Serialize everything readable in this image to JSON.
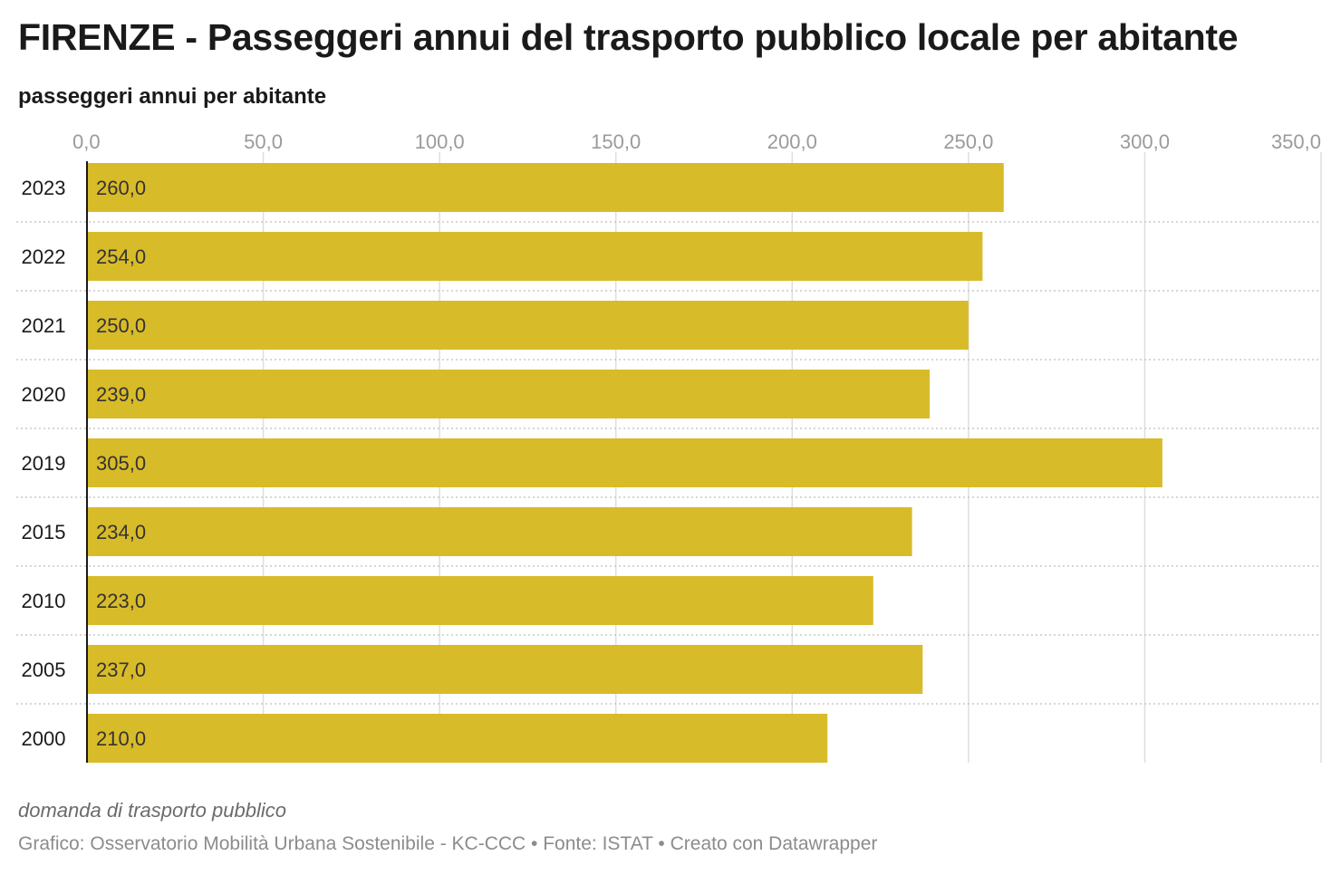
{
  "header": {
    "title": "FIRENZE - Passeggeri annui del trasporto pubblico locale per abitante",
    "subtitle": "passeggeri annui per abitante"
  },
  "footer": {
    "note": "domanda di trasporto pubblico",
    "credits": "Grafico: Osservatorio Mobilità Urbana Sostenibile - KC-CCC • Fonte: ISTAT • Creato con Datawrapper"
  },
  "chart_data": {
    "type": "bar",
    "orientation": "horizontal",
    "title": "FIRENZE - Passeggeri annui del trasporto pubblico locale per abitante",
    "subtitle": "passeggeri annui per abitante",
    "categories": [
      "2023",
      "2022",
      "2021",
      "2020",
      "2019",
      "2015",
      "2010",
      "2005",
      "2000"
    ],
    "values": [
      260.0,
      254.0,
      250.0,
      239.0,
      305.0,
      234.0,
      223.0,
      237.0,
      210.0
    ],
    "value_labels": [
      "260,0",
      "254,0",
      "250,0",
      "239,0",
      "305,0",
      "234,0",
      "223,0",
      "237,0",
      "210,0"
    ],
    "xlim": [
      0,
      350
    ],
    "x_ticks": [
      0,
      50,
      100,
      150,
      200,
      250,
      300,
      350
    ],
    "x_tick_labels": [
      "0,0",
      "50,0",
      "100,0",
      "150,0",
      "200,0",
      "250,0",
      "300,0",
      "350,0"
    ],
    "xaxis_position": "top",
    "grid": true,
    "bar_color": "#d8bb29"
  }
}
